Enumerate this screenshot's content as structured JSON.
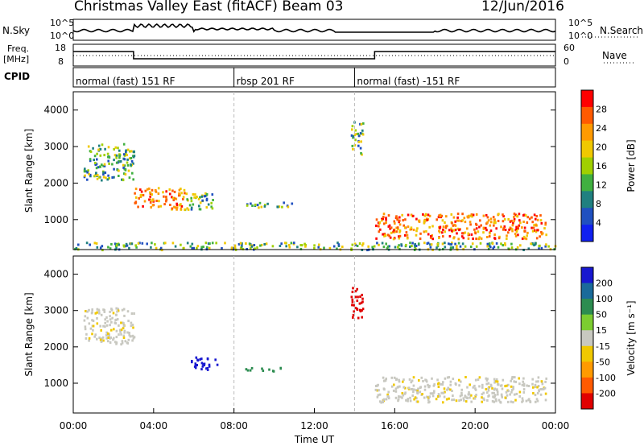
{
  "header": {
    "title": "Christmas Valley East (fitACF)",
    "beam": "Beam 03",
    "date": "12/Jun/2016"
  },
  "side_labels": {
    "nsky": "N.Sky",
    "nsearch": "N.Search",
    "freq_top": "Freq.",
    "freq_unit": "[MHz]",
    "nave": "Nave",
    "cpid": "CPID"
  },
  "noise_axis": {
    "left_ticks": [
      "10^5",
      "10^0"
    ],
    "right_ticks": [
      "10^5",
      "10^0"
    ]
  },
  "freq_axis": {
    "left_ticks": [
      "18",
      "8"
    ],
    "right_ticks": [
      "60",
      "0"
    ]
  },
  "cpid_segments": [
    {
      "label": "normal (fast) 151 RF",
      "start_hour": 0
    },
    {
      "label": "rbsp 201 RF",
      "start_hour": 8
    },
    {
      "label": "normal (fast) -151 RF",
      "start_hour": 14
    }
  ],
  "chart_data": [
    {
      "type": "heatmap",
      "panel": "power",
      "ylabel": "Slant Range [km]",
      "yticks": [
        1000,
        2000,
        3000,
        4000
      ],
      "ylim": [
        180,
        4500
      ],
      "xlim_hours": [
        0,
        24
      ],
      "colorbar_label": "Power [dB]",
      "colorbar_ticks": [
        "28",
        "24",
        "20",
        "16",
        "12",
        "8",
        "4"
      ],
      "colorbar_colors": [
        "#ff0000",
        "#ff5a00",
        "#ff9a00",
        "#f0c800",
        "#a0d000",
        "#40b040",
        "#208080",
        "#2050c0",
        "#1020f0"
      ],
      "regions": [
        {
          "t": [
            0.5,
            3.0
          ],
          "r": [
            2100,
            3100
          ],
          "level": "mid"
        },
        {
          "t": [
            3.0,
            5.5
          ],
          "r": [
            1300,
            1900
          ],
          "level": "high"
        },
        {
          "t": [
            5.5,
            7.0
          ],
          "r": [
            1300,
            1800
          ],
          "level": "mid"
        },
        {
          "t": [
            8.5,
            11.0
          ],
          "r": [
            1350,
            1500
          ],
          "level": "mid"
        },
        {
          "t": [
            13.8,
            14.4
          ],
          "r": [
            2800,
            3700
          ],
          "level": "mid"
        },
        {
          "t": [
            15.0,
            23.5
          ],
          "r": [
            500,
            1200
          ],
          "level": "high"
        },
        {
          "t": [
            0,
            24
          ],
          "r": [
            200,
            400
          ],
          "level": "mid"
        }
      ]
    },
    {
      "type": "heatmap",
      "panel": "velocity",
      "ylabel": "Slant Range [km]",
      "yticks": [
        1000,
        2000,
        3000,
        4000
      ],
      "ylim": [
        180,
        4500
      ],
      "xlim_hours": [
        0,
        24
      ],
      "colorbar_label": "Velocity [m s⁻¹]",
      "colorbar_ticks": [
        "200",
        "100",
        "50",
        "15",
        "-15",
        "-50",
        "-100",
        "-200"
      ],
      "colorbar_colors": [
        "#1818d0",
        "#1a6a9a",
        "#2c8c50",
        "#7ccc30",
        "#c8c8c0",
        "#f0c800",
        "#ff9a00",
        "#ff5a00",
        "#e00000"
      ],
      "regions": [
        {
          "t": [
            0.5,
            3.0
          ],
          "r": [
            2100,
            3100
          ],
          "velocity_class": "-15..15"
        },
        {
          "t": [
            5.8,
            7.2
          ],
          "r": [
            1400,
            1750
          ],
          "velocity_class": ">200"
        },
        {
          "t": [
            8.5,
            10.5
          ],
          "r": [
            1350,
            1450
          ],
          "velocity_class": "50..100"
        },
        {
          "t": [
            13.8,
            14.4
          ],
          "r": [
            2800,
            3700
          ],
          "velocity_class": "<-200"
        },
        {
          "t": [
            15.0,
            23.5
          ],
          "r": [
            500,
            1200
          ],
          "velocity_class": "-15..15"
        }
      ]
    }
  ],
  "x_axis": {
    "tick_labels": [
      "00:00",
      "04:00",
      "08:00",
      "12:00",
      "16:00",
      "20:00",
      "00:00"
    ],
    "label": "Time UT"
  }
}
